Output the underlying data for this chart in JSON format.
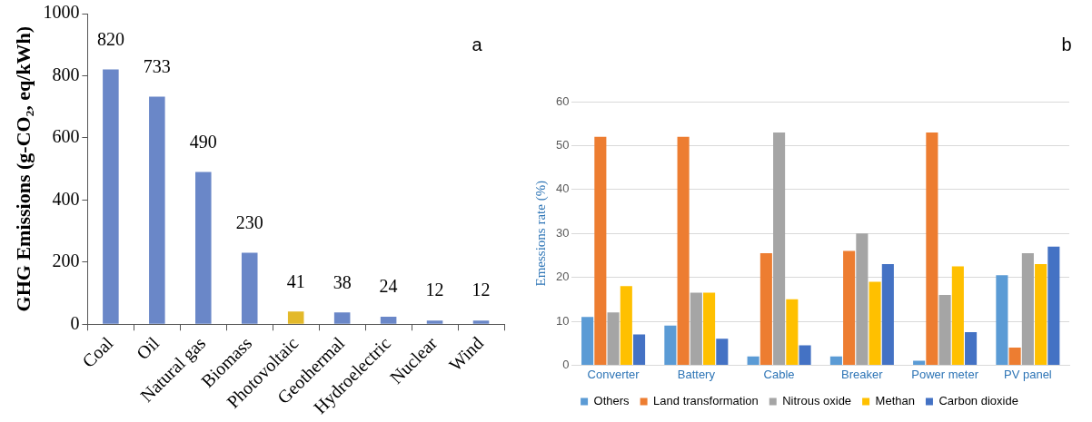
{
  "chart_data": [
    {
      "type": "bar",
      "title": "a",
      "ylabel": "GHG Emissions (g-CO₂, eq/kWh)",
      "categories": [
        "Coal",
        "Oil",
        "Natural gas",
        "Biomass",
        "Photovoltaic",
        "Geothermal",
        "Hydroelectric",
        "Nuclear",
        "Wind"
      ],
      "values": [
        820,
        733,
        490,
        230,
        41,
        38,
        24,
        12,
        12
      ],
      "colors": [
        "#6a87c8",
        "#6a87c8",
        "#6a87c8",
        "#6a87c8",
        "#e3b92a",
        "#6a87c8",
        "#6a87c8",
        "#6a87c8",
        "#6a87c8"
      ],
      "ylim": [
        0,
        1000
      ],
      "yticks": [
        0,
        200,
        400,
        600,
        800,
        1000
      ],
      "data_labels": true,
      "grid": false,
      "legend": false
    },
    {
      "type": "bar",
      "title": "b",
      "ylabel": "Emessions rate (%)",
      "categories": [
        "Converter",
        "Battery",
        "Cable",
        "Breaker",
        "Power meter",
        "PV panel"
      ],
      "series": [
        {
          "name": "Others",
          "color": "#5b9bd5",
          "values": [
            11,
            9,
            2,
            2,
            1,
            20.5
          ]
        },
        {
          "name": "Land transformation",
          "color": "#ed7d31",
          "values": [
            52,
            52,
            25.5,
            26,
            53,
            4
          ]
        },
        {
          "name": "Nitrous oxide",
          "color": "#a5a5a5",
          "values": [
            12,
            16.5,
            53,
            30,
            16,
            25.5
          ]
        },
        {
          "name": "Methan",
          "color": "#ffc000",
          "values": [
            18,
            16.5,
            15,
            19,
            22.5,
            23
          ]
        },
        {
          "name": "Carbon dioxide",
          "color": "#4472c4",
          "values": [
            7,
            6,
            4.5,
            23,
            7.5,
            27
          ]
        }
      ],
      "ylim": [
        0,
        60
      ],
      "yticks": [
        0,
        10,
        20,
        30,
        40,
        50,
        60
      ],
      "grid": "y",
      "legend": "bottom"
    }
  ]
}
